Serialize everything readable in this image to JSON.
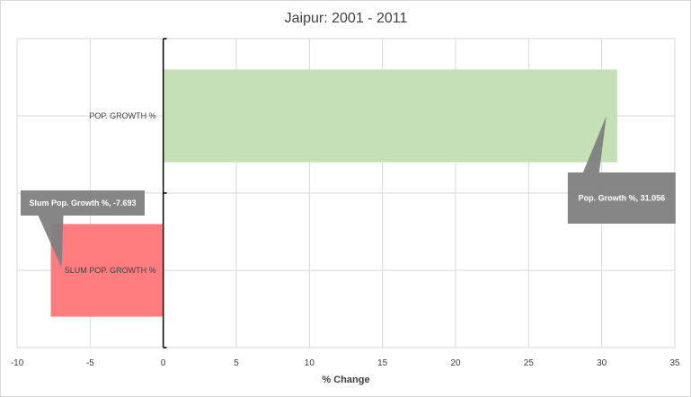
{
  "chart_data": {
    "type": "bar",
    "orientation": "horizontal",
    "title": "Jaipur: 2001 - 2011",
    "xlabel": "% Change",
    "ylabel": "",
    "xlim": [
      -10,
      35
    ],
    "xticks": [
      -10,
      -5,
      0,
      5,
      10,
      15,
      20,
      25,
      30,
      35
    ],
    "grid": true,
    "categories": [
      "POP. GROWTH %",
      "SLUM POP. GROWTH %"
    ],
    "values": [
      31.056,
      -7.693
    ],
    "colors": [
      "#c5e0b4",
      "#ff7c80"
    ],
    "callouts": [
      "Pop. Growth %, 31.056",
      "Slum Pop. Growth %, -7.693"
    ]
  }
}
